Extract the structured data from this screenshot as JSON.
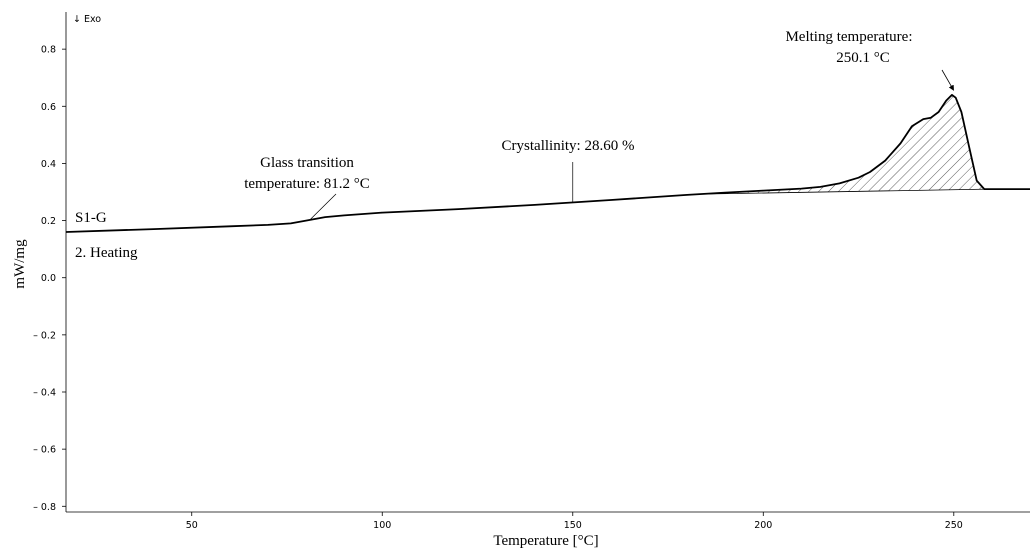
{
  "chart_data": {
    "type": "line",
    "title": "",
    "xlabel": "Temperature [°C]",
    "ylabel": "mW/mg",
    "xlim": [
      17,
      270
    ],
    "ylim": [
      -0.82,
      0.93
    ],
    "x_ticks": [
      50,
      100,
      150,
      200,
      250
    ],
    "x_tick_labels": [
      "50",
      "100",
      "150",
      "200",
      "250"
    ],
    "y_ticks": [
      0.8,
      0.6,
      0.4,
      0.2,
      0.0,
      -0.2,
      -0.4,
      -0.6,
      -0.8
    ],
    "y_tick_labels": [
      "0.8",
      "0.6",
      "0.4",
      "0.2",
      "0.0",
      "– 0.2",
      "– 0.4",
      "– 0.6",
      "– 0.8"
    ],
    "exo_label": "↓ Exo",
    "grid": false,
    "series": [
      {
        "name": "S1-G",
        "x": [
          17,
          40,
          60,
          70,
          76,
          80,
          85,
          90,
          100,
          120,
          140,
          160,
          180,
          190,
          200,
          210,
          215,
          220,
          225,
          228,
          232,
          236,
          239,
          242,
          244,
          246,
          248,
          249.5,
          250.5,
          252,
          254,
          256,
          258,
          260,
          265,
          270
        ],
        "y": [
          0.16,
          0.17,
          0.18,
          0.185,
          0.19,
          0.2,
          0.212,
          0.218,
          0.228,
          0.24,
          0.255,
          0.272,
          0.29,
          0.298,
          0.305,
          0.312,
          0.318,
          0.33,
          0.35,
          0.37,
          0.41,
          0.47,
          0.53,
          0.555,
          0.56,
          0.58,
          0.62,
          0.64,
          0.63,
          0.58,
          0.46,
          0.34,
          0.31,
          0.31,
          0.31,
          0.31
        ]
      }
    ],
    "sample_label": "S1-G",
    "run_label": "2. Heating",
    "melting_area": {
      "baseline_x": [
        185,
        259
      ],
      "baseline_y": [
        0.293,
        0.31
      ]
    },
    "annotations": [
      {
        "lines": [
          "Glass transition",
          "temperature: 81.2 °C"
        ],
        "x": 81.2,
        "y": 0.205,
        "kind": "glass"
      },
      {
        "lines": [
          "Crystallinity: 28.60 %"
        ],
        "x": 150,
        "y": 0.262,
        "kind": "crystallinity"
      },
      {
        "lines": [
          "Melting temperature:",
          "250.1 °C"
        ],
        "x": 250.1,
        "y": 0.645,
        "kind": "melting"
      }
    ]
  }
}
